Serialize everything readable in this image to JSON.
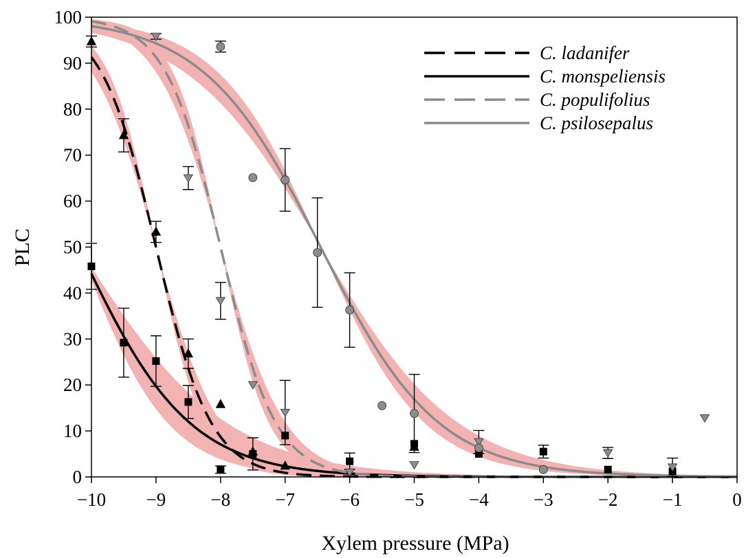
{
  "chart_data": {
    "type": "scatter",
    "title": "",
    "xlabel": "Xylem pressure (MPa)",
    "ylabel": "PLC",
    "xlim": [
      -10,
      0
    ],
    "ylim": [
      0,
      100
    ],
    "x_ticks": [
      -10,
      -9,
      -8,
      -7,
      -6,
      -5,
      -4,
      -3,
      -2,
      -1,
      0
    ],
    "x_tick_labels": [
      "−10",
      "−9",
      "−8",
      "−7",
      "−6",
      "−5",
      "−4",
      "−3",
      "−2",
      "−1",
      "0"
    ],
    "y_ticks": [
      0,
      10,
      20,
      30,
      40,
      50,
      60,
      70,
      80,
      90,
      100
    ],
    "y_tick_labels": [
      "0",
      "10",
      "20",
      "30",
      "40",
      "50",
      "60",
      "70",
      "80",
      "90",
      "100"
    ],
    "grid": false,
    "legend_position": "top-right",
    "confidence_band_color": "#f4b3b3",
    "series": [
      {
        "name": "C. ladanifer",
        "line_style": "long-dash",
        "line_color": "#000000",
        "marker": "triangle-up",
        "marker_color": "#000000",
        "fit": {
          "p50": -9.0,
          "slope": 2.35,
          "band": 0.15
        },
        "points": [
          {
            "x": -10,
            "y": 94.7,
            "err": 1.2
          },
          {
            "x": -9.5,
            "y": 74.3,
            "err": 3.6
          },
          {
            "x": -9,
            "y": 53.3,
            "err": 2.3
          },
          {
            "x": -8.5,
            "y": 26.8,
            "err": 3.2
          },
          {
            "x": -8,
            "y": 15.8,
            "err": 0
          },
          {
            "x": -7.5,
            "y": 5.5,
            "err": 0
          },
          {
            "x": -7,
            "y": 2.4,
            "err": 0
          },
          {
            "x": -5,
            "y": 6.5,
            "err": 0
          }
        ]
      },
      {
        "name": "C. monspeliensis",
        "line_style": "solid",
        "line_color": "#000000",
        "marker": "square",
        "marker_color": "#000000",
        "fit": {
          "p50": -10.2,
          "slope": 1.17,
          "band": 0.25
        },
        "points": [
          {
            "x": -10,
            "y": 45.8,
            "err": 5.0
          },
          {
            "x": -9.5,
            "y": 29.2,
            "err": 7.5
          },
          {
            "x": -9,
            "y": 25.2,
            "err": 5.5
          },
          {
            "x": -8.5,
            "y": 16.3,
            "err": 3.6
          },
          {
            "x": -8,
            "y": 1.6,
            "err": 0.8
          },
          {
            "x": -7.5,
            "y": 5.0,
            "err": 3.5
          },
          {
            "x": -7,
            "y": 9.0,
            "err": 0
          },
          {
            "x": -6,
            "y": 3.4,
            "err": 1.8
          },
          {
            "x": -5,
            "y": 7.2,
            "err": 0
          },
          {
            "x": -4,
            "y": 5.0,
            "err": 0
          },
          {
            "x": -3,
            "y": 5.5,
            "err": 1.4
          },
          {
            "x": -2,
            "y": 1.6,
            "err": 0
          },
          {
            "x": -1,
            "y": 1.2,
            "err": 0
          }
        ]
      },
      {
        "name": "C. populifolius",
        "line_style": "long-dash",
        "line_color": "#8c8c8c",
        "marker": "triangle-down",
        "marker_color": "#8c8c8c",
        "fit": {
          "p50": -8.0,
          "slope": 2.35,
          "band": 0.15
        },
        "points": [
          {
            "x": -9,
            "y": 95.8,
            "err": 0.6
          },
          {
            "x": -8.5,
            "y": 65.0,
            "err": 2.5
          },
          {
            "x": -8,
            "y": 38.3,
            "err": 4.0
          },
          {
            "x": -7.5,
            "y": 20.0,
            "err": 0
          },
          {
            "x": -7,
            "y": 14.0,
            "err": 7.0
          },
          {
            "x": -6,
            "y": 1.0,
            "err": 0
          },
          {
            "x": -5,
            "y": 2.6,
            "err": 0
          },
          {
            "x": -4,
            "y": 7.6,
            "err": 2.5
          },
          {
            "x": -2,
            "y": 5.2,
            "err": 1.2
          },
          {
            "x": -1,
            "y": 2.1,
            "err": 2.0
          },
          {
            "x": -0.5,
            "y": 12.8,
            "err": 0
          }
        ]
      },
      {
        "name": "C. psilosepalus",
        "line_style": "solid",
        "line_color": "#8c8c8c",
        "marker": "circle",
        "marker_color": "#8c8c8c",
        "fit": {
          "p50": -6.45,
          "slope": 1.1,
          "band": 0.14
        },
        "points": [
          {
            "x": -8,
            "y": 93.6,
            "err": 1.2
          },
          {
            "x": -7.5,
            "y": 65.1,
            "err": 0
          },
          {
            "x": -7,
            "y": 64.6,
            "err": 6.8
          },
          {
            "x": -6.5,
            "y": 48.8,
            "err": 11.9
          },
          {
            "x": -6,
            "y": 36.3,
            "err": 8.1
          },
          {
            "x": -5.5,
            "y": 15.5,
            "err": 0
          },
          {
            "x": -5,
            "y": 13.8,
            "err": 8.5
          },
          {
            "x": -4,
            "y": 6.3,
            "err": 0
          },
          {
            "x": -3,
            "y": 1.6,
            "err": 0
          }
        ]
      }
    ]
  }
}
